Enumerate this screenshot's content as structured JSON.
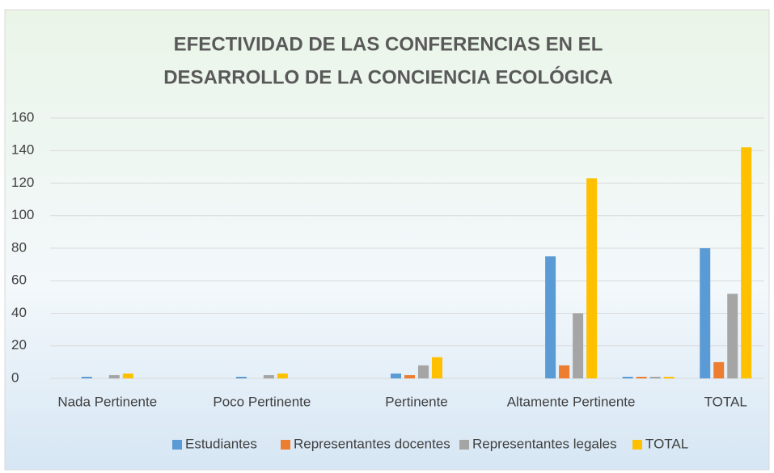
{
  "chart_data": {
    "type": "bar",
    "title": [
      "EFECTIVIDAD DE LAS CONFERENCIAS  EN EL",
      "DESARROLLO DE LA CONCIENCIA ECOLÓGICA"
    ],
    "categories": [
      "Nada Pertinente",
      null,
      "Poco Pertinente",
      null,
      "Pertinente",
      null,
      "Altamente Pertinente",
      null,
      "TOTAL"
    ],
    "series": [
      {
        "name": "Estudiantes",
        "color": "#5b9bd5",
        "values": [
          1,
          null,
          1,
          null,
          3,
          null,
          75,
          1,
          80
        ]
      },
      {
        "name": "Representantes docentes",
        "color": "#ed7d31",
        "values": [
          0,
          null,
          0,
          null,
          2,
          null,
          8,
          1,
          10
        ]
      },
      {
        "name": "Representantes legales",
        "color": "#a5a5a5",
        "values": [
          2,
          null,
          2,
          null,
          8,
          null,
          40,
          1,
          52
        ]
      },
      {
        "name": "TOTAL",
        "color": "#ffc000",
        "values": [
          3,
          null,
          3,
          null,
          13,
          null,
          123,
          1,
          142
        ]
      }
    ],
    "ylim": [
      0,
      160
    ],
    "yticks": [
      0,
      20,
      40,
      60,
      80,
      100,
      120,
      140,
      160
    ],
    "grid": true,
    "legend": "bottom"
  }
}
